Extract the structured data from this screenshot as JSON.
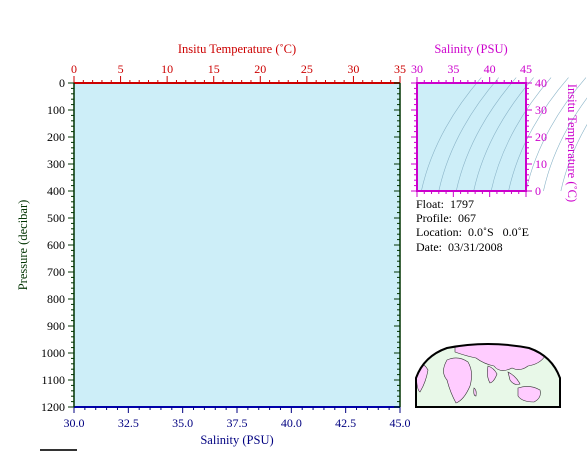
{
  "chart_data": [
    {
      "type": "line",
      "title": "",
      "top_axis": {
        "label": "Insitu Temperature (˚C)",
        "range": [
          0,
          35
        ],
        "ticks": [
          "0",
          "5",
          "10",
          "15",
          "20",
          "25",
          "30",
          "35"
        ],
        "color": "#cc0000"
      },
      "bottom_axis": {
        "label": "Salinity (PSU)",
        "range": [
          30.0,
          45.0
        ],
        "ticks": [
          "30.0",
          "32.5",
          "35.0",
          "37.5",
          "40.0",
          "42.5",
          "45.0"
        ],
        "color": "#000080"
      },
      "left_axis": {
        "label": "Pressure (decibar)",
        "range": [
          0,
          1200
        ],
        "inverted": true,
        "ticks": [
          "0",
          "100",
          "200",
          "300",
          "400",
          "500",
          "600",
          "700",
          "800",
          "900",
          "1000",
          "1100",
          "1200"
        ],
        "color": "#003300"
      },
      "background_color": "#cdeef8",
      "series": []
    },
    {
      "type": "scatter",
      "title": "",
      "top_axis": {
        "label": "Salinity (PSU)",
        "range": [
          30,
          45
        ],
        "ticks": [
          "30",
          "35",
          "40",
          "45"
        ],
        "color": "#cc00cc"
      },
      "right_axis": {
        "label": "Insitu Temperature (˚C)",
        "range": [
          0,
          40
        ],
        "ticks": [
          "0",
          "10",
          "20",
          "30",
          "40"
        ],
        "color": "#cc00cc"
      },
      "background_color": "#cdeef8",
      "density_contours": true,
      "series": []
    }
  ],
  "float_info": {
    "float": "Float:  1797",
    "profile": "Profile:  067",
    "location": "Location:  0.0˚S   0.0˚E",
    "date": "Date:  03/31/2008"
  },
  "colors": {
    "land": "#ffccff",
    "ocean": "#e8f8e8"
  }
}
